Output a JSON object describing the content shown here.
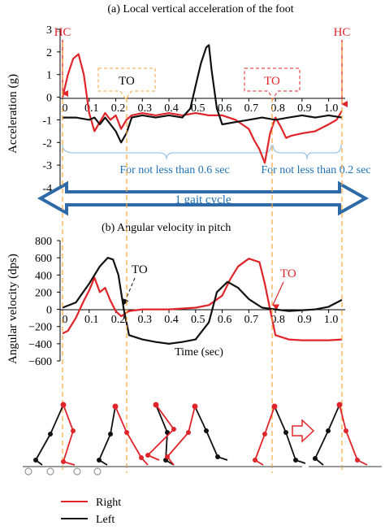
{
  "colors": {
    "right": "#e0252a",
    "left": "#111111",
    "guide": "#f3a640",
    "brace": "#9fc6e6",
    "arrow_fill": "#ffffff",
    "arrow_stroke": "#2e6aa8",
    "annotation": "#1f6fb4",
    "ground": "#9a9a9a"
  },
  "labels": {
    "hc": "HC",
    "to": "TO",
    "brace_left": "For not less than 0.6 sec",
    "brace_right": "For not less than 0.2 sec",
    "gait_cycle": "1 gait cycle",
    "stride_arrow": "next stride"
  },
  "legend": {
    "right": "Right",
    "left": "Left"
  },
  "chart_data": [
    {
      "type": "line",
      "title": "(a)  Local vertical acceleration of the foot",
      "xlabel": "",
      "ylabel": "Acceleration (g)",
      "xlim": [
        0,
        1.08
      ],
      "ylim": [
        -4,
        3
      ],
      "x_ticks": [
        "0",
        "0.1",
        "0.2",
        "0.3",
        "0.4",
        "0.5",
        "0.6",
        "0.7",
        "0.8",
        "0.9",
        "1.0"
      ],
      "y_ticks": [
        "-4",
        "-3",
        "-2",
        "-1",
        "0",
        "1",
        "2",
        "3"
      ],
      "series": [
        {
          "name": "Right",
          "x": [
            0,
            0.02,
            0.04,
            0.06,
            0.08,
            0.1,
            0.12,
            0.14,
            0.16,
            0.18,
            0.2,
            0.22,
            0.24,
            0.26,
            0.3,
            0.35,
            0.4,
            0.45,
            0.5,
            0.55,
            0.6,
            0.65,
            0.7,
            0.72,
            0.74,
            0.76,
            0.78,
            0.8,
            0.82,
            0.84,
            0.86,
            0.9,
            0.95,
            1.0,
            1.03,
            1.05
          ],
          "y": [
            0,
            1.0,
            1.7,
            1.9,
            1.0,
            -0.7,
            -1.5,
            -1.1,
            -0.7,
            -1.0,
            -0.8,
            -1.4,
            -1.0,
            -0.8,
            -0.7,
            -0.8,
            -0.7,
            -0.8,
            -0.7,
            -0.8,
            -0.8,
            -1.0,
            -1.4,
            -1.9,
            -2.3,
            -2.9,
            -1.6,
            -0.9,
            -1.3,
            -1.8,
            -1.7,
            -1.6,
            -1.5,
            -1.2,
            -1.0,
            -0.6
          ]
        },
        {
          "name": "Left",
          "x": [
            0,
            0.05,
            0.1,
            0.12,
            0.14,
            0.16,
            0.18,
            0.2,
            0.22,
            0.24,
            0.26,
            0.3,
            0.35,
            0.4,
            0.45,
            0.48,
            0.5,
            0.52,
            0.54,
            0.55,
            0.56,
            0.58,
            0.6,
            0.65,
            0.7,
            0.75,
            0.8,
            0.85,
            0.9,
            0.95,
            1.0,
            1.05
          ],
          "y": [
            -0.9,
            -0.9,
            -1.0,
            -0.9,
            -1.2,
            -0.9,
            -1.2,
            -1.5,
            -2.0,
            -1.6,
            -0.9,
            -0.8,
            -0.9,
            -0.8,
            -0.9,
            -0.5,
            0.5,
            1.5,
            2.2,
            2.3,
            1.2,
            -0.5,
            -1.2,
            -1.1,
            -1.0,
            -0.9,
            -1.0,
            -0.9,
            -0.8,
            -0.9,
            -0.8,
            -0.9
          ]
        }
      ]
    },
    {
      "type": "line",
      "title": "(b)  Angular velocity in pitch",
      "xlabel": "Time (sec)",
      "ylabel": "Angular velocity (dps)",
      "xlim": [
        0,
        1.08
      ],
      "ylim": [
        -600,
        800
      ],
      "x_ticks": [
        "0",
        "0.1",
        "0.2",
        "0.3",
        "0.4",
        "0.5",
        "0.6",
        "0.7",
        "0.8",
        "0.9",
        "1.0"
      ],
      "y_ticks": [
        "−600",
        "−400",
        "−200",
        "0",
        "200",
        "400",
        "600",
        "800"
      ],
      "series": [
        {
          "name": "Right",
          "x": [
            0,
            0.02,
            0.05,
            0.08,
            0.1,
            0.12,
            0.14,
            0.16,
            0.18,
            0.2,
            0.22,
            0.25,
            0.3,
            0.4,
            0.5,
            0.55,
            0.6,
            0.63,
            0.66,
            0.7,
            0.74,
            0.76,
            0.78,
            0.8,
            0.85,
            0.9,
            1.0,
            1.05
          ],
          "y": [
            -280,
            -250,
            -100,
            100,
            220,
            370,
            200,
            250,
            100,
            -20,
            -80,
            -20,
            0,
            0,
            20,
            50,
            160,
            350,
            500,
            590,
            550,
            300,
            0,
            -300,
            -350,
            -360,
            -360,
            -350
          ]
        },
        {
          "name": "Left",
          "x": [
            0,
            0.05,
            0.1,
            0.14,
            0.17,
            0.19,
            0.21,
            0.23,
            0.25,
            0.3,
            0.35,
            0.4,
            0.45,
            0.5,
            0.55,
            0.58,
            0.62,
            0.66,
            0.7,
            0.75,
            0.8,
            0.85,
            0.9,
            0.95,
            1.0,
            1.05
          ],
          "y": [
            20,
            80,
            300,
            500,
            600,
            580,
            400,
            0,
            -300,
            -350,
            -380,
            -400,
            -380,
            -350,
            -150,
            200,
            320,
            250,
            120,
            20,
            0,
            -20,
            -10,
            0,
            30,
            110
          ]
        }
      ]
    }
  ]
}
